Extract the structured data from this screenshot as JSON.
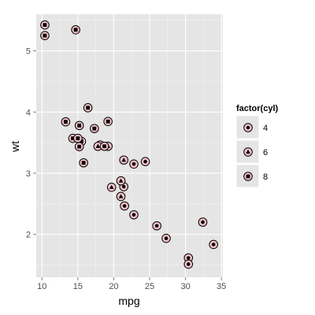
{
  "chart_data": {
    "type": "scatter",
    "xlabel": "mpg",
    "ylabel": "wt",
    "xlim": [
      9.2,
      35.2
    ],
    "ylim": [
      1.3,
      5.6
    ],
    "x_ticks": [
      10,
      15,
      20,
      25,
      30,
      35
    ],
    "y_ticks": [
      2,
      3,
      4,
      5
    ],
    "grid": true,
    "legend": {
      "title": "factor(cyl)",
      "position": "right",
      "entries": [
        "4",
        "6",
        "8"
      ]
    },
    "colors": {
      "panel": "#e5e5e5",
      "grid_major": "#ffffff",
      "grid_minor": "#f2f2f2",
      "point_fill": "#f4c2c9",
      "point_stroke": "#000000",
      "inner": "#000000"
    },
    "series": [
      {
        "name": "4",
        "shape": "circle",
        "x": [
          22.8,
          24.4,
          22.8,
          32.4,
          30.4,
          33.9,
          21.5,
          27.3,
          26.0,
          30.4,
          21.4
        ],
        "y": [
          2.32,
          3.19,
          3.15,
          2.2,
          1.615,
          1.835,
          2.465,
          1.935,
          2.14,
          1.513,
          2.78
        ]
      },
      {
        "name": "6",
        "shape": "triangle",
        "x": [
          21.0,
          21.0,
          21.4,
          18.1,
          19.2,
          17.8,
          19.7
        ],
        "y": [
          2.62,
          2.875,
          3.215,
          3.46,
          3.44,
          3.44,
          2.77
        ]
      },
      {
        "name": "8",
        "shape": "square",
        "x": [
          18.7,
          14.3,
          16.4,
          17.3,
          15.2,
          10.4,
          10.4,
          14.7,
          15.5,
          15.2,
          13.3,
          19.2,
          15.8,
          15.0
        ],
        "y": [
          3.44,
          3.57,
          4.07,
          3.73,
          3.78,
          5.25,
          5.424,
          5.345,
          3.52,
          3.435,
          3.84,
          3.845,
          3.17,
          3.57
        ]
      }
    ]
  }
}
